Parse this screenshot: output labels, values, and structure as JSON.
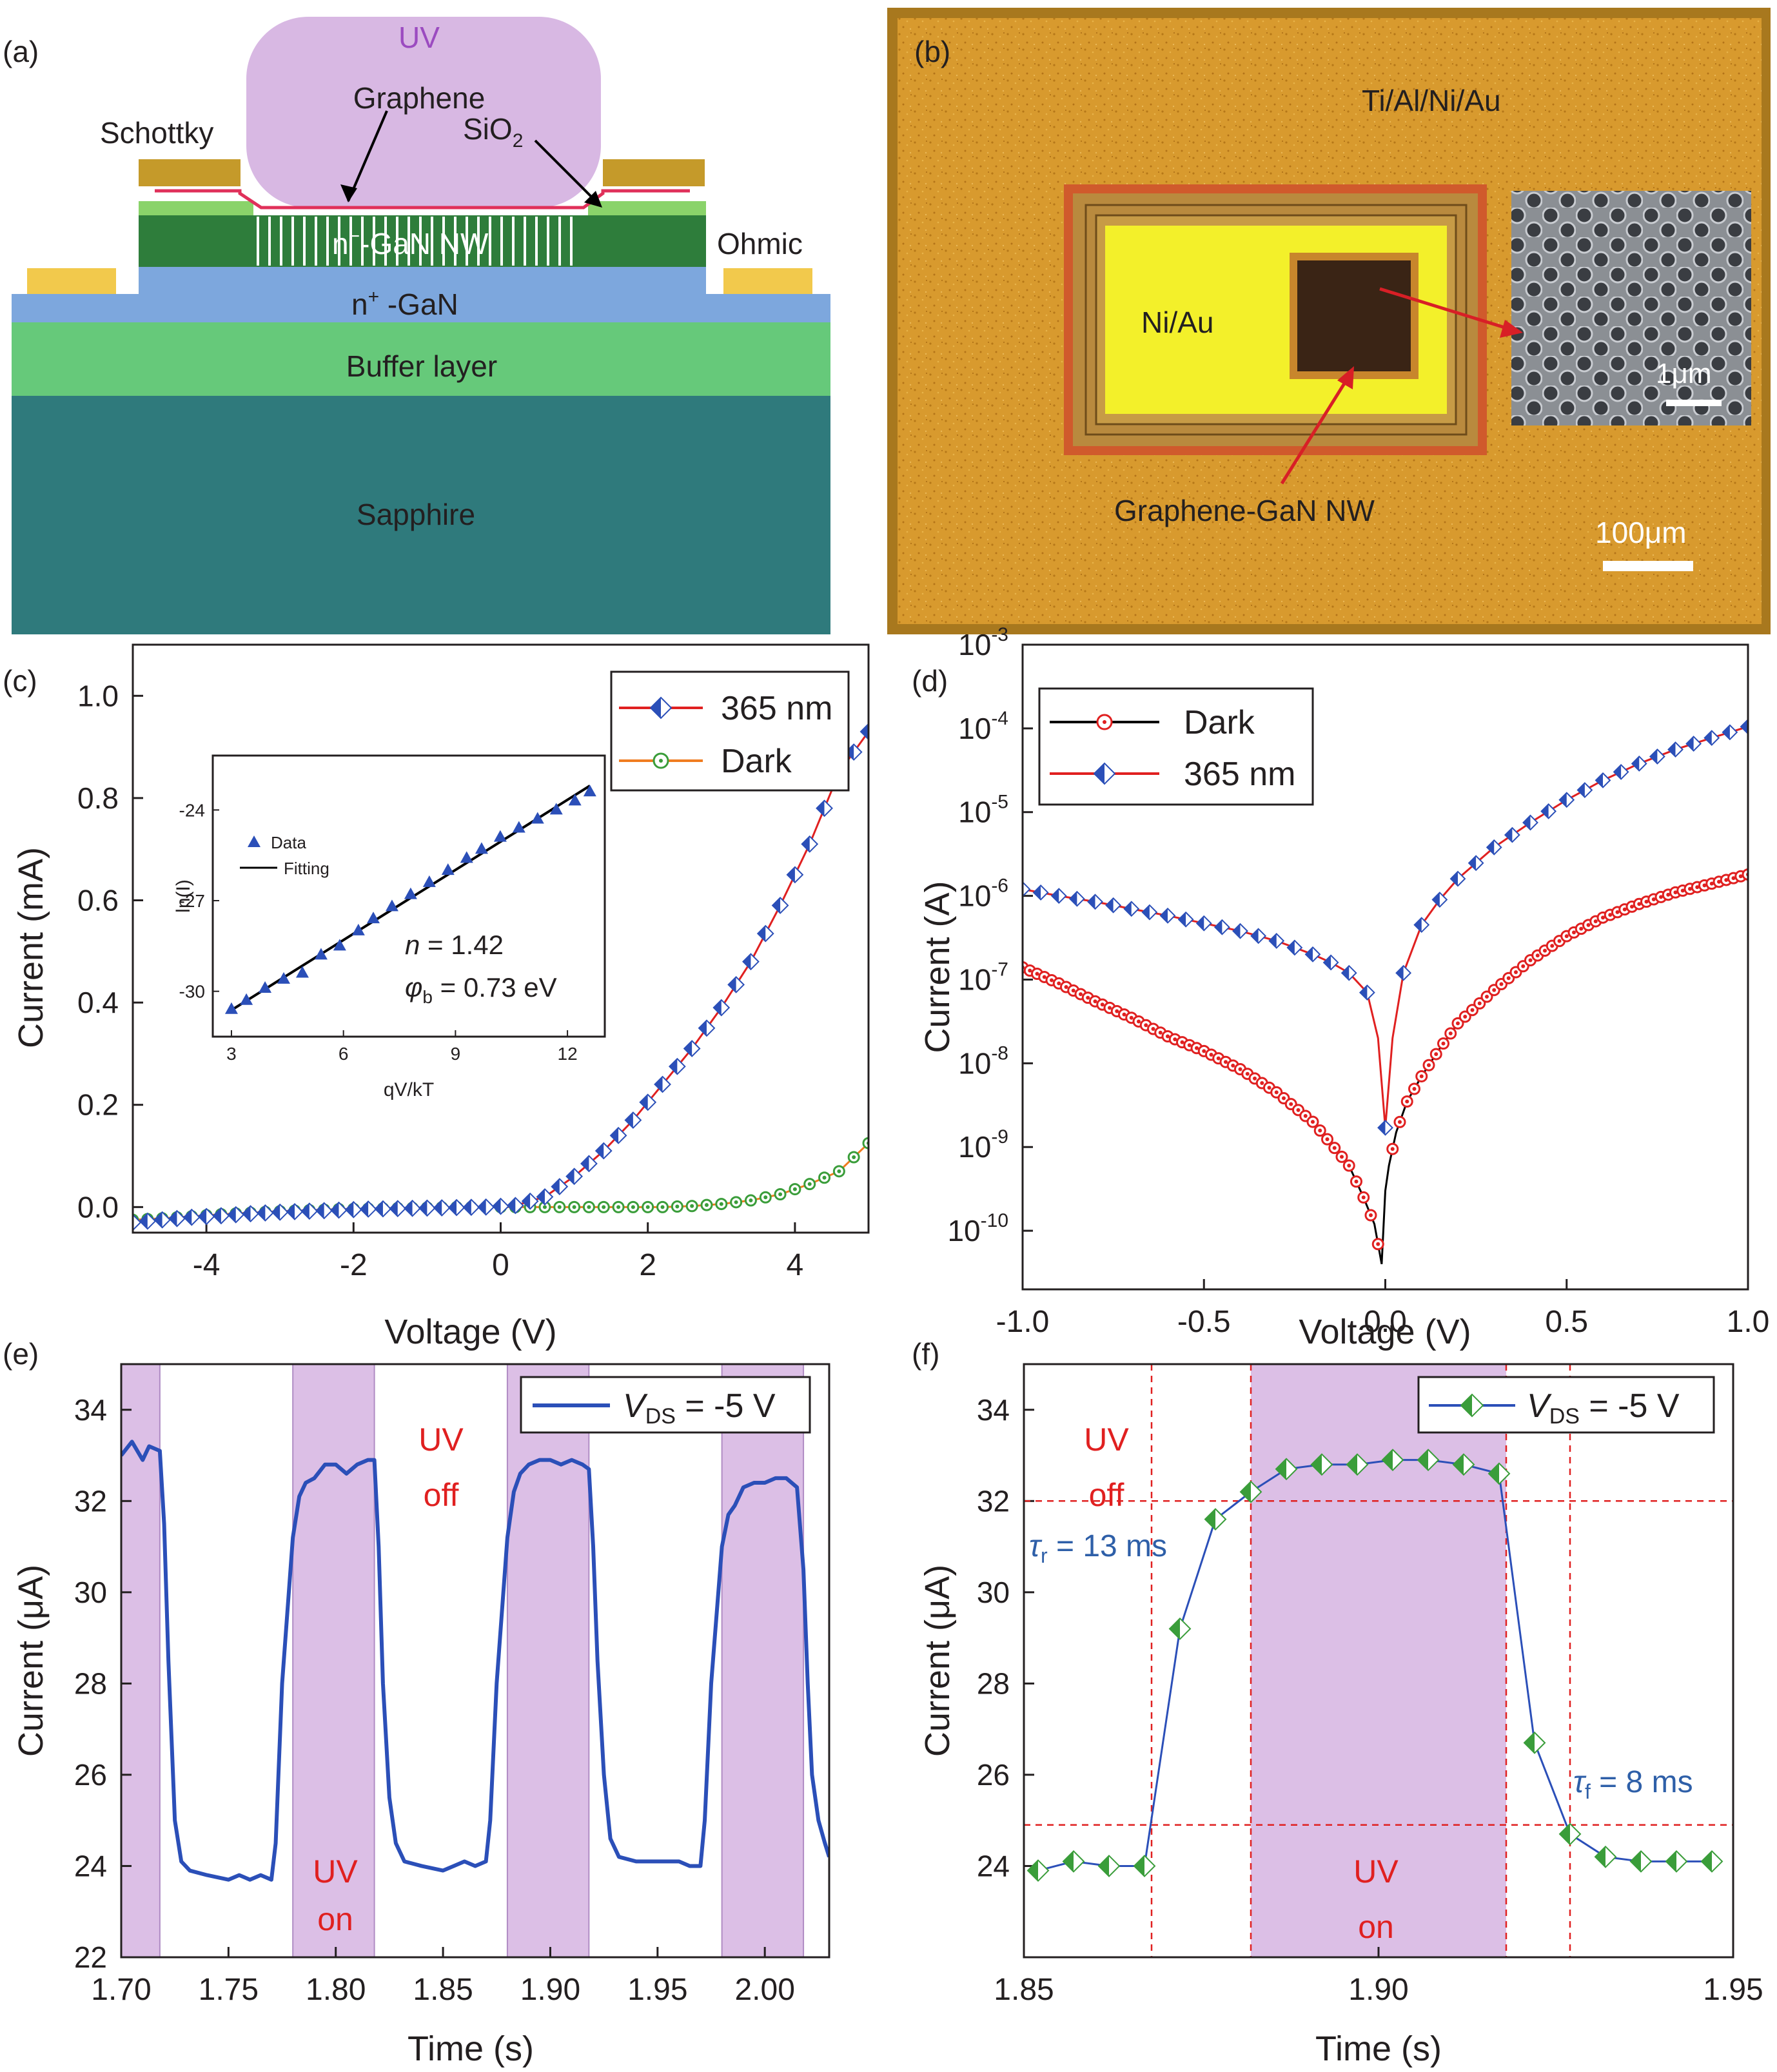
{
  "panel_a": {
    "label": "(a)",
    "uv": "UV",
    "graphene": "Graphene",
    "schottky": "Schottky",
    "sio2_main": "SiO",
    "sio2_sub": "2",
    "ngan_nw_main": "n",
    "ngan_nw_sup": "−",
    "ngan_nw_rest": "-GaN NW",
    "ohmic": "Ohmic",
    "nplus_main": "n",
    "nplus_sup": "+",
    "nplus_rest": " -GaN",
    "buffer": "Buffer layer",
    "sapphire": "Sapphire",
    "colors": {
      "uv": "#d8b8e3",
      "sapphire": "#2f7a7c",
      "buffer": "#66c97a",
      "nplus": "#7da7dd",
      "nwgan": "#2e7d3b",
      "metal": "#c59a2a",
      "ohmic": "#f2c94c"
    }
  },
  "panel_b": {
    "label": "(b)",
    "metal_stack": "Ti/Al/Ni/Au",
    "niau": "Ni/Au",
    "device": "Graphene-GaN NW",
    "inset_scale": "1μm",
    "scale": "100μm"
  },
  "panel_c": {
    "label": "(c)",
    "chart_data": {
      "type": "line",
      "xlabel": "Voltage (V)",
      "ylabel": "Current (mA)",
      "xlim": [
        -5,
        5
      ],
      "ylim": [
        -0.05,
        1.1
      ],
      "xticks": [
        "-4",
        "-2",
        "0",
        "2",
        "4"
      ],
      "yticks": [
        "0.0",
        "0.2",
        "0.4",
        "0.6",
        "0.8",
        "1.0"
      ],
      "legend_position": "top-right",
      "series": [
        {
          "name": "365 nm",
          "color": "#e02020",
          "marker": "diamond-half-blue",
          "x": [
            -5,
            -4.6,
            -4.2,
            -3.8,
            -3.4,
            -3.0,
            -2.6,
            -2.2,
            -1.8,
            -1.4,
            -1.0,
            -0.6,
            -0.2,
            0.2,
            0.6,
            1.0,
            1.4,
            1.8,
            2.2,
            2.6,
            3.0,
            3.4,
            3.8,
            4.2,
            4.6,
            5.0
          ],
          "y": [
            -0.03,
            -0.025,
            -0.02,
            -0.017,
            -0.013,
            -0.01,
            -0.008,
            -0.006,
            -0.004,
            -0.003,
            -0.002,
            -0.001,
            0.0,
            0.003,
            0.02,
            0.06,
            0.11,
            0.17,
            0.24,
            0.31,
            0.39,
            0.48,
            0.59,
            0.71,
            0.85,
            0.93
          ]
        },
        {
          "name": "Dark",
          "color": "#f07c20",
          "marker": "circle-dot-green",
          "x": [
            -5,
            -4.6,
            -4.2,
            -3.8,
            -3.4,
            -3.0,
            -2.6,
            -2.2,
            -1.8,
            -1.4,
            -1.0,
            -0.6,
            -0.2,
            0.2,
            0.6,
            1.0,
            1.4,
            1.8,
            2.2,
            2.6,
            3.0,
            3.4,
            3.8,
            4.2,
            4.6,
            5.0
          ],
          "y": [
            -0.025,
            -0.022,
            -0.018,
            -0.014,
            -0.011,
            -0.008,
            -0.006,
            -0.004,
            -0.003,
            -0.002,
            -0.001,
            0.0,
            0.0,
            0.0,
            0.0,
            0.0,
            0.0,
            0.0,
            0.0,
            0.002,
            0.006,
            0.013,
            0.025,
            0.045,
            0.07,
            0.125
          ]
        }
      ],
      "inset": {
        "type": "scatter",
        "xlabel": "qV/kT",
        "ylabel": "ln(I)",
        "xlim": [
          2.5,
          13
        ],
        "ylim": [
          -31.5,
          -22.2
        ],
        "xticks": [
          "3",
          "6",
          "9",
          "12"
        ],
        "yticks": [
          "-24",
          "-27",
          "-30"
        ],
        "legend": [
          "Data",
          "Fitting"
        ],
        "annotation_n": "n",
        "annotation_n_value": " = 1.42",
        "annotation_phi": "φ",
        "annotation_phi_sub": "b",
        "annotation_phi_value": " = 0.73 eV",
        "data_x": [
          3.0,
          3.4,
          3.9,
          4.4,
          4.9,
          5.4,
          5.9,
          6.4,
          6.8,
          7.3,
          7.8,
          8.3,
          8.8,
          9.3,
          9.7,
          10.2,
          10.7,
          11.2,
          11.7,
          12.2,
          12.6
        ],
        "data_y": [
          -30.6,
          -30.3,
          -29.9,
          -29.6,
          -29.4,
          -28.8,
          -28.5,
          -28.0,
          -27.6,
          -27.2,
          -26.8,
          -26.4,
          -26.0,
          -25.6,
          -25.3,
          -24.9,
          -24.6,
          -24.3,
          -24.0,
          -23.7,
          -23.4
        ],
        "fit_x": [
          2.9,
          12.6
        ],
        "fit_y": [
          -30.7,
          -23.2
        ]
      }
    }
  },
  "panel_d": {
    "label": "(d)",
    "chart_data": {
      "type": "line",
      "scale_y": "log",
      "xlabel": "Voltage (V)",
      "ylabel": "Current (A)",
      "xlim": [
        -1.0,
        1.0
      ],
      "ylim_exp": [
        -10.7,
        -3
      ],
      "xticks": [
        "-1.0",
        "-0.5",
        "0.0",
        "0.5",
        "1.0"
      ],
      "yticks": [
        "10",
        "10",
        "10",
        "10",
        "10",
        "10",
        "10",
        "10"
      ],
      "ytick_exponents": [
        "-10",
        "-9",
        "-8",
        "-7",
        "-6",
        "-5",
        "-4",
        "-3"
      ],
      "legend_position": "top-left",
      "series": [
        {
          "name": "Dark",
          "color": "#000000",
          "marker": "circle-dot-red",
          "x": [
            -1.0,
            -0.9,
            -0.8,
            -0.7,
            -0.6,
            -0.5,
            -0.4,
            -0.3,
            -0.2,
            -0.15,
            -0.1,
            -0.06,
            -0.03,
            -0.01,
            0.0,
            0.01,
            0.03,
            0.06,
            0.1,
            0.15,
            0.2,
            0.3,
            0.4,
            0.5,
            0.6,
            0.7,
            0.8,
            0.9,
            1.0
          ],
          "y": [
            1.4e-07,
            9e-08,
            5.5e-08,
            3.5e-08,
            2.1e-08,
            1.4e-08,
            8.5e-09,
            4.5e-09,
            2e-09,
            1.1e-09,
            6e-10,
            2.5e-10,
            1.2e-10,
            4e-11,
            3e-10,
            6e-10,
            1.5e-09,
            3.5e-09,
            7e-09,
            1.5e-08,
            3e-08,
            7.5e-08,
            1.7e-07,
            3.3e-07,
            5.5e-07,
            8e-07,
            1.1e-06,
            1.4e-06,
            1.8e-06
          ]
        },
        {
          "name": "365 nm",
          "color": "#e02020",
          "marker": "diamond-half-blue",
          "x": [
            -1.0,
            -0.9,
            -0.8,
            -0.7,
            -0.6,
            -0.5,
            -0.4,
            -0.3,
            -0.2,
            -0.15,
            -0.1,
            -0.05,
            -0.02,
            0.0,
            0.02,
            0.05,
            0.1,
            0.15,
            0.2,
            0.3,
            0.4,
            0.5,
            0.6,
            0.7,
            0.8,
            0.9,
            1.0
          ],
          "y": [
            1.2e-06,
            1e-06,
            8.5e-07,
            7e-07,
            5.8e-07,
            4.7e-07,
            3.8e-07,
            2.9e-07,
            2e-07,
            1.6e-07,
            1.2e-07,
            7e-08,
            2e-08,
            1.7e-09,
            2e-08,
            1.2e-07,
            4.5e-07,
            9e-07,
            1.6e-06,
            3.8e-06,
            7.5e-06,
            1.4e-05,
            2.4e-05,
            3.8e-05,
            5.6e-05,
            7.7e-05,
            0.000105
          ]
        }
      ]
    }
  },
  "panel_e": {
    "label": "(e)",
    "uv_off_1": "UV",
    "uv_off_2": "off",
    "uv_on_1": "UV",
    "uv_on_2": "on",
    "chart_data": {
      "type": "line",
      "xlabel": "Time (s)",
      "ylabel": "Current (μA)",
      "xlim": [
        1.7,
        2.03
      ],
      "ylim": [
        22,
        35
      ],
      "xticks": [
        "1.70",
        "1.75",
        "1.80",
        "1.85",
        "1.90",
        "1.95",
        "2.00"
      ],
      "yticks": [
        "22",
        "24",
        "26",
        "28",
        "30",
        "32",
        "34"
      ],
      "legend_position": "top-right",
      "uv_on_intervals": [
        [
          1.7,
          1.718
        ],
        [
          1.78,
          1.818
        ],
        [
          1.88,
          1.918
        ],
        [
          1.98,
          2.018
        ]
      ],
      "series": [
        {
          "name_main": "V",
          "name_sub": "DS",
          "name_rest": " = -5 V",
          "color": "#2b4fb8",
          "x": [
            1.7,
            1.705,
            1.71,
            1.713,
            1.718,
            1.72,
            1.722,
            1.725,
            1.728,
            1.732,
            1.74,
            1.75,
            1.755,
            1.76,
            1.765,
            1.77,
            1.772,
            1.775,
            1.78,
            1.783,
            1.786,
            1.79,
            1.795,
            1.8,
            1.805,
            1.81,
            1.815,
            1.818,
            1.82,
            1.822,
            1.825,
            1.828,
            1.832,
            1.84,
            1.85,
            1.855,
            1.86,
            1.865,
            1.87,
            1.872,
            1.875,
            1.88,
            1.883,
            1.886,
            1.89,
            1.895,
            1.9,
            1.905,
            1.91,
            1.915,
            1.918,
            1.92,
            1.922,
            1.925,
            1.928,
            1.932,
            1.94,
            1.95,
            1.955,
            1.96,
            1.965,
            1.97,
            1.972,
            1.975,
            1.98,
            1.983,
            1.986,
            1.99,
            1.995,
            2.0,
            2.005,
            2.01,
            2.015,
            2.018,
            2.02,
            2.022,
            2.025,
            2.028,
            2.03
          ],
          "y": [
            33.0,
            33.3,
            32.9,
            33.2,
            33.1,
            31.5,
            28.5,
            25.0,
            24.1,
            23.9,
            23.8,
            23.7,
            23.8,
            23.7,
            23.8,
            23.7,
            24.5,
            28.0,
            31.2,
            32.1,
            32.4,
            32.5,
            32.8,
            32.8,
            32.6,
            32.8,
            32.9,
            32.9,
            31.0,
            28.0,
            25.5,
            24.5,
            24.1,
            24.0,
            23.9,
            24.0,
            24.1,
            24.0,
            24.1,
            25.0,
            28.0,
            31.2,
            32.2,
            32.6,
            32.8,
            32.9,
            32.9,
            32.8,
            32.9,
            32.8,
            32.7,
            31.0,
            28.5,
            26.0,
            24.6,
            24.2,
            24.1,
            24.1,
            24.1,
            24.1,
            24.0,
            24.0,
            25.0,
            28.0,
            31.0,
            31.7,
            31.9,
            32.3,
            32.4,
            32.4,
            32.5,
            32.5,
            32.3,
            30.5,
            28.0,
            26.0,
            25.0,
            24.5,
            24.2
          ]
        }
      ]
    }
  },
  "panel_f": {
    "label": "(f)",
    "uv_off_1": "UV",
    "uv_off_2": "off",
    "uv_on_1": "UV",
    "uv_on_2": "on",
    "tau_r_sym": "τ",
    "tau_r_sub": "r",
    "tau_r_val": " = 13 ms",
    "tau_f_sym": "τ",
    "tau_f_sub": "f",
    "tau_f_val": " = 8 ms",
    "chart_data": {
      "type": "line",
      "xlabel": "Time (s)",
      "ylabel": "Current (μA)",
      "xlim": [
        1.85,
        1.95
      ],
      "ylim": [
        22,
        35
      ],
      "xticks": [
        "1.85",
        "1.90",
        "1.95"
      ],
      "yticks": [
        "24",
        "26",
        "28",
        "30",
        "32",
        "34"
      ],
      "legend_position": "top-right",
      "uv_on_interval": [
        1.882,
        1.918
      ],
      "ref_lines_x": [
        1.868,
        1.882,
        1.918,
        1.927
      ],
      "ref_lines_y": [
        32.0,
        24.9
      ],
      "series": [
        {
          "name_main": "V",
          "name_sub": "DS",
          "name_rest": " = -5 V",
          "color": "#2b4fb8",
          "marker": "diamond-half-green",
          "x": [
            1.852,
            1.857,
            1.862,
            1.867,
            1.872,
            1.877,
            1.882,
            1.887,
            1.892,
            1.897,
            1.902,
            1.907,
            1.912,
            1.917,
            1.922,
            1.927,
            1.932,
            1.937,
            1.942,
            1.947
          ],
          "y": [
            23.9,
            24.1,
            24.0,
            24.0,
            29.2,
            31.6,
            32.2,
            32.7,
            32.8,
            32.8,
            32.9,
            32.9,
            32.8,
            32.6,
            26.7,
            24.7,
            24.2,
            24.1,
            24.1,
            24.1
          ]
        }
      ]
    }
  }
}
